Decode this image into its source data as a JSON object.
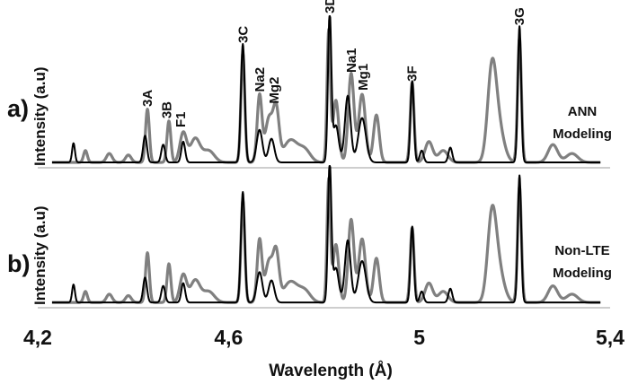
{
  "chart_data": {
    "type": "line",
    "xlabel": "Wavelength (Å)",
    "x_ticks": [
      "4,2",
      "4,6",
      "5",
      "5,4"
    ],
    "x_tick_values": [
      4.2,
      4.6,
      5.0,
      5.4
    ],
    "xlim": [
      4.2,
      5.4
    ],
    "grid": false,
    "panels": [
      {
        "id": "a",
        "tag": "a)",
        "ylabel": "Intensity (a.u)",
        "legend_text": [
          "ANN",
          "Modeling"
        ],
        "annotations": [
          {
            "text": "3A",
            "x": 4.43,
            "peak": 0.37
          },
          {
            "text": "3B",
            "x": 4.47,
            "peak": 0.29
          },
          {
            "text": "F1",
            "x": 4.5,
            "peak": 0.23
          },
          {
            "text": "3C",
            "x": 4.63,
            "peak": 0.8
          },
          {
            "text": "Na2",
            "x": 4.665,
            "peak": 0.47
          },
          {
            "text": "Mg2",
            "x": 4.695,
            "peak": 0.39
          },
          {
            "text": "3D",
            "x": 4.812,
            "peak": 1.0
          },
          {
            "text": "Na1",
            "x": 4.857,
            "peak": 0.6
          },
          {
            "text": "Mg1",
            "x": 4.882,
            "peak": 0.48
          },
          {
            "text": "3F",
            "x": 4.985,
            "peak": 0.54
          },
          {
            "text": "3G",
            "x": 5.21,
            "peak": 0.92
          }
        ]
      },
      {
        "id": "b",
        "tag": "b)",
        "ylabel": "Intensity (a.u)",
        "legend_text": [
          "Non-LTE",
          "Modeling"
        ]
      }
    ],
    "series": [
      {
        "color": "#000000",
        "peaks": [
          [
            4.275,
            0.13,
            0.003
          ],
          [
            4.425,
            0.18,
            0.004
          ],
          [
            4.463,
            0.12,
            0.004
          ],
          [
            4.505,
            0.14,
            0.004
          ],
          [
            4.63,
            0.8,
            0.004
          ],
          [
            4.665,
            0.22,
            0.006
          ],
          [
            4.69,
            0.16,
            0.006
          ],
          [
            4.812,
            1.0,
            0.0035
          ],
          [
            4.825,
            0.25,
            0.006
          ],
          [
            4.85,
            0.45,
            0.006
          ],
          [
            4.88,
            0.3,
            0.008
          ],
          [
            4.985,
            0.55,
            0.0035
          ],
          [
            5.005,
            0.08,
            0.004
          ],
          [
            5.065,
            0.1,
            0.004
          ],
          [
            5.21,
            0.92,
            0.0035
          ]
        ]
      },
      {
        "color": "#808080",
        "peaks": [
          [
            4.3,
            0.08,
            0.004
          ],
          [
            4.35,
            0.06,
            0.006
          ],
          [
            4.39,
            0.05,
            0.006
          ],
          [
            4.43,
            0.36,
            0.004
          ],
          [
            4.475,
            0.28,
            0.004
          ],
          [
            4.505,
            0.2,
            0.007
          ],
          [
            4.53,
            0.16,
            0.01
          ],
          [
            4.558,
            0.08,
            0.012
          ],
          [
            4.63,
            0.74,
            0.004
          ],
          [
            4.665,
            0.45,
            0.005
          ],
          [
            4.685,
            0.3,
            0.008
          ],
          [
            4.7,
            0.33,
            0.006
          ],
          [
            4.73,
            0.15,
            0.015
          ],
          [
            4.76,
            0.08,
            0.012
          ],
          [
            4.81,
            0.88,
            0.0035
          ],
          [
            4.825,
            0.42,
            0.006
          ],
          [
            4.857,
            0.6,
            0.006
          ],
          [
            4.88,
            0.46,
            0.007
          ],
          [
            4.91,
            0.32,
            0.006
          ],
          [
            4.985,
            0.54,
            0.004
          ],
          [
            5.02,
            0.14,
            0.008
          ],
          [
            5.05,
            0.08,
            0.01
          ],
          [
            5.152,
            0.56,
            0.009
          ],
          [
            5.165,
            0.24,
            0.012
          ],
          [
            5.21,
            0.84,
            0.004
          ],
          [
            5.28,
            0.12,
            0.01
          ],
          [
            5.32,
            0.06,
            0.012
          ]
        ]
      }
    ]
  }
}
